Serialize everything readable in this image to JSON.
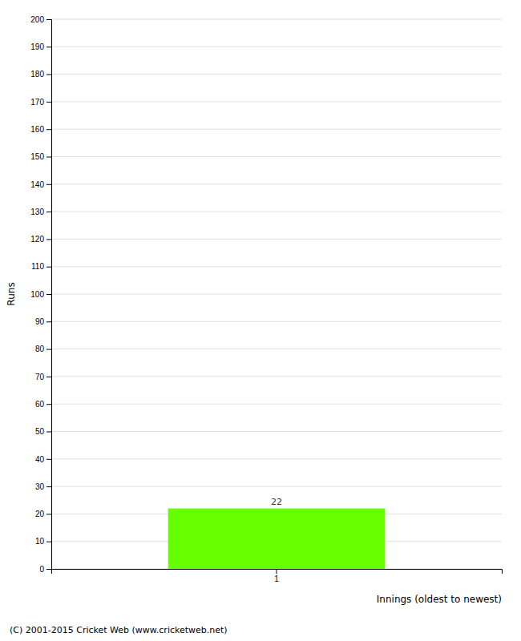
{
  "chart_data": {
    "type": "bar",
    "x_label": "Innings (oldest to newest)",
    "y_label": "Runs",
    "footer": "(C) 2001-2015 Cricket Web (www.cricketweb.net)",
    "categories": [
      "1"
    ],
    "values": [
      22
    ],
    "color": "#66ff00",
    "ylim": [
      0,
      200
    ],
    "yticks": [
      0,
      10,
      20,
      30,
      40,
      50,
      60,
      70,
      80,
      90,
      100,
      110,
      120,
      130,
      140,
      150,
      160,
      170,
      180,
      190,
      200
    ],
    "grid": true,
    "data_labels": true
  }
}
